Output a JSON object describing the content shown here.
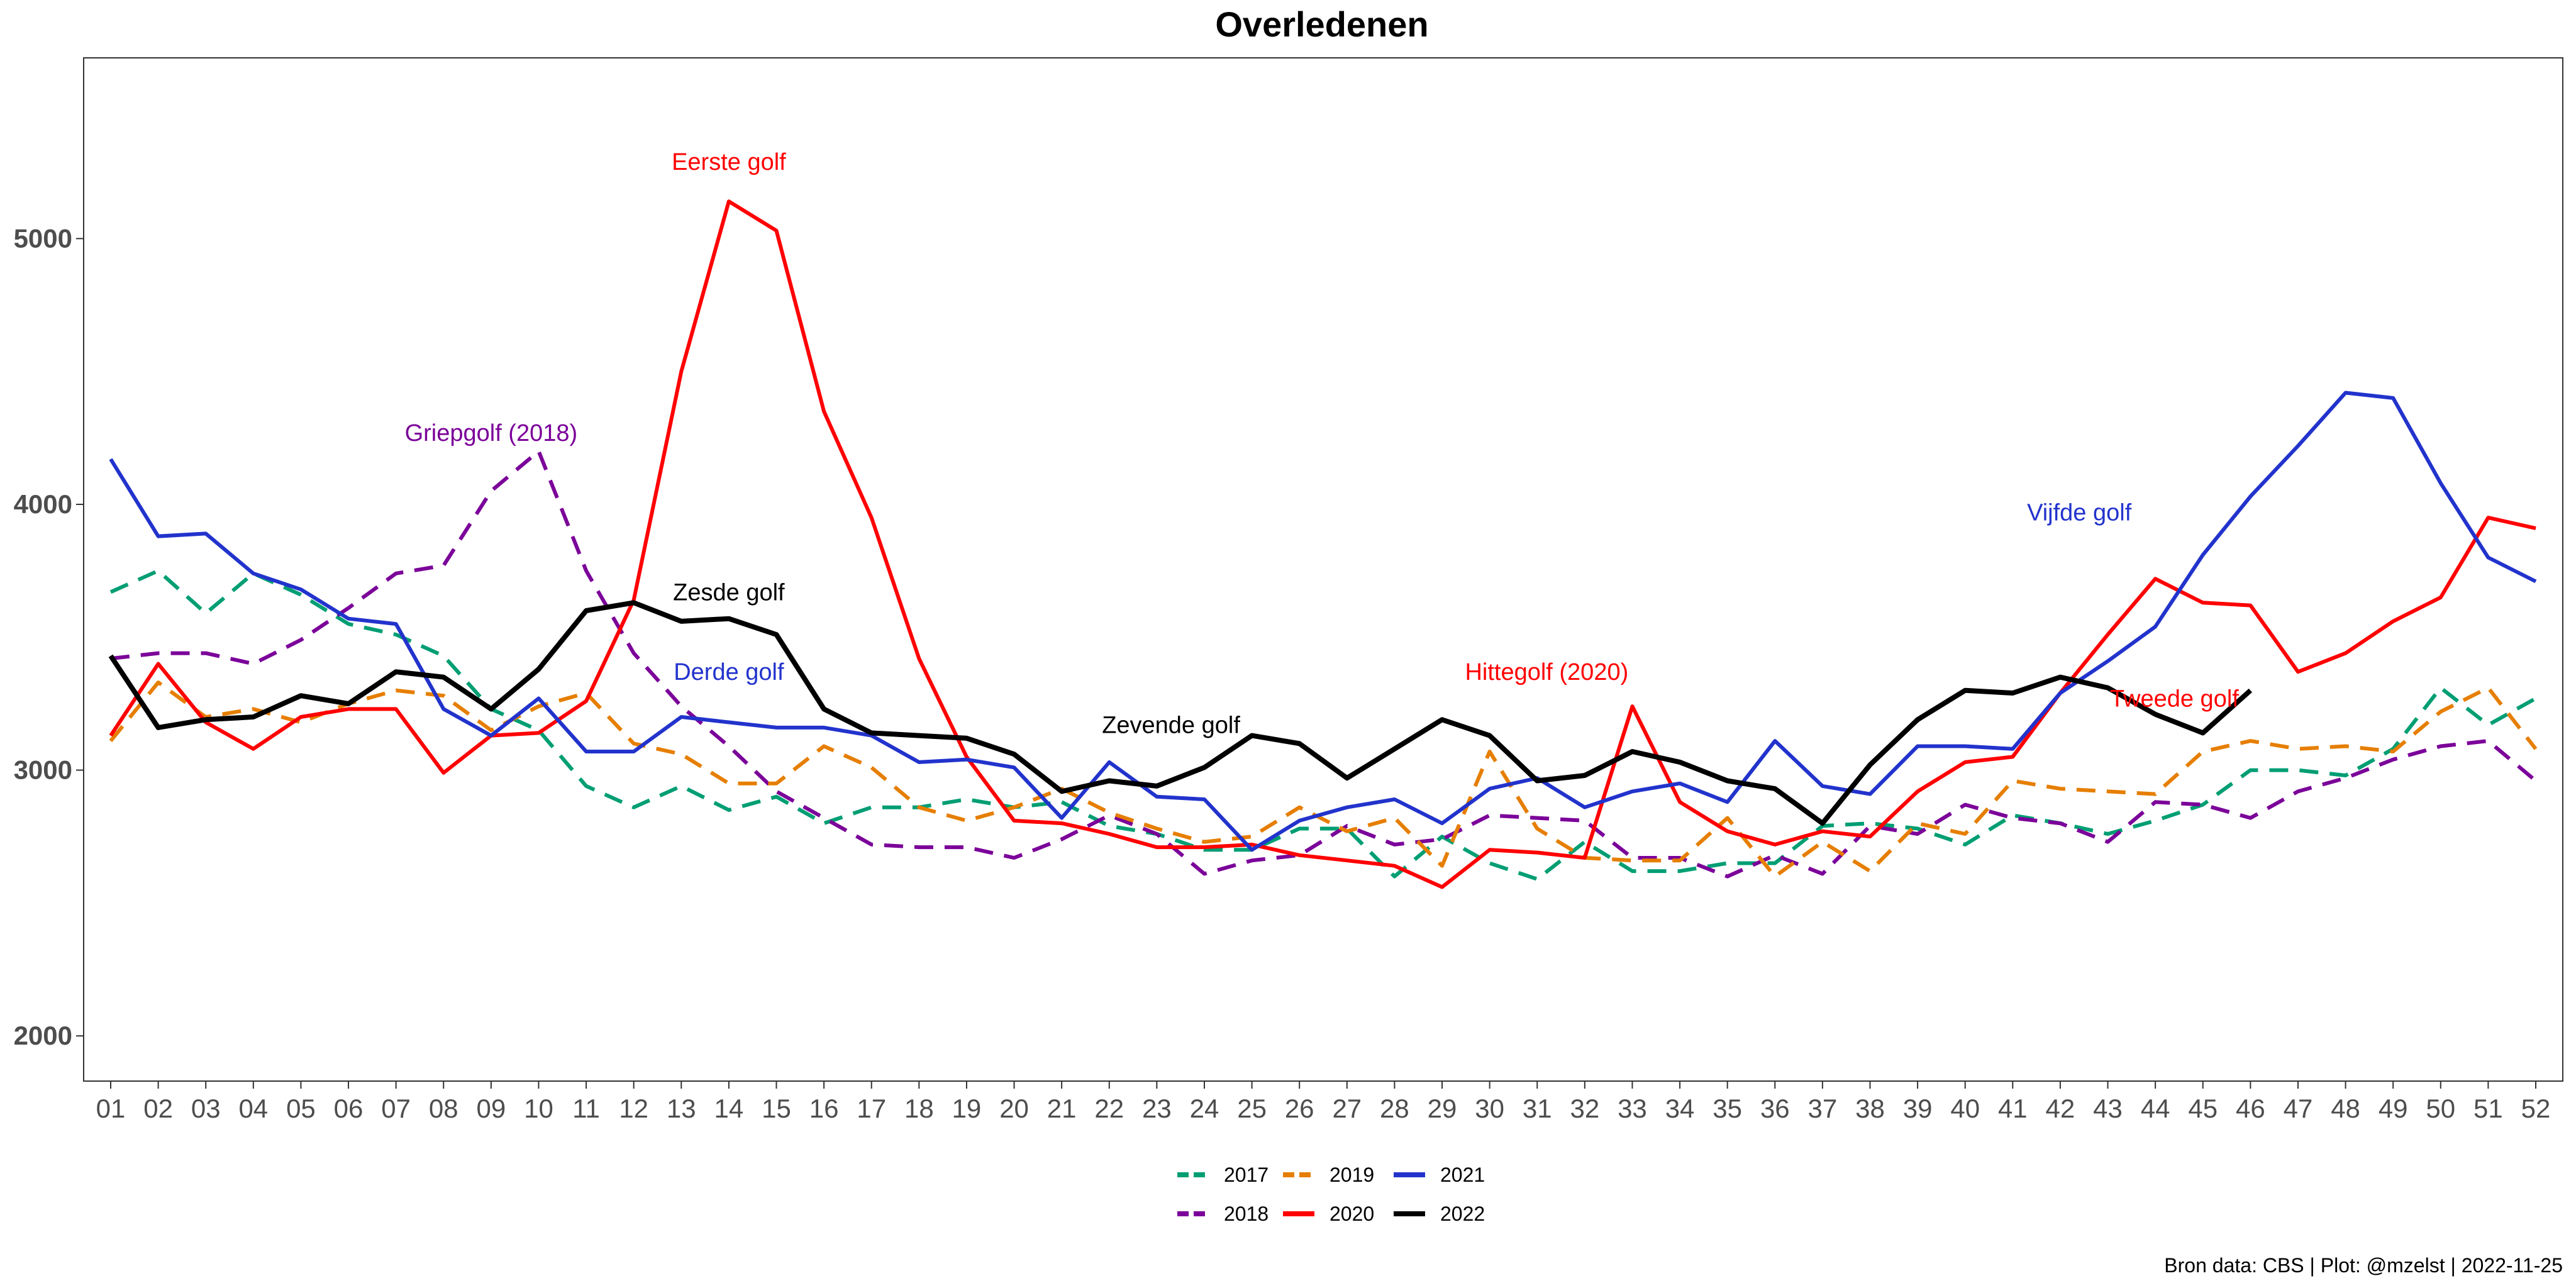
{
  "chart_data": {
    "type": "line",
    "title": "Overledenen",
    "xlabel": "",
    "ylabel": "",
    "categories": [
      "01",
      "02",
      "03",
      "04",
      "05",
      "06",
      "07",
      "08",
      "09",
      "10",
      "11",
      "12",
      "13",
      "14",
      "15",
      "16",
      "17",
      "18",
      "19",
      "20",
      "21",
      "22",
      "23",
      "24",
      "25",
      "26",
      "27",
      "28",
      "29",
      "30",
      "31",
      "32",
      "33",
      "34",
      "35",
      "36",
      "37",
      "38",
      "39",
      "40",
      "41",
      "42",
      "43",
      "44",
      "45",
      "46",
      "47",
      "48",
      "49",
      "50",
      "51",
      "52"
    ],
    "ylim": [
      1830,
      5680
    ],
    "yticks": [
      2000,
      3000,
      4000,
      5000
    ],
    "grid": false,
    "legend_position": "bottom",
    "series": [
      {
        "name": "2017",
        "color": "#009E73",
        "dash": "dashed",
        "values": [
          3670,
          3750,
          3590,
          3740,
          3660,
          3550,
          3510,
          3430,
          3230,
          3150,
          2940,
          2860,
          2940,
          2850,
          2900,
          2800,
          2860,
          2860,
          2890,
          2860,
          2880,
          2790,
          2760,
          2700,
          2700,
          2780,
          2780,
          2600,
          2750,
          2650,
          2590,
          2730,
          2620,
          2620,
          2650,
          2650,
          2790,
          2800,
          2780,
          2720,
          2830,
          2800,
          2760,
          2810,
          2870,
          3000,
          3000,
          2980,
          3080,
          3310,
          3170,
          3270
        ]
      },
      {
        "name": "2018",
        "color": "#7B0099",
        "dash": "dashed",
        "values": [
          3420,
          3440,
          3440,
          3400,
          3490,
          3610,
          3740,
          3770,
          4050,
          4200,
          3750,
          3440,
          3240,
          3090,
          2920,
          2820,
          2720,
          2710,
          2710,
          2670,
          2740,
          2830,
          2760,
          2610,
          2660,
          2680,
          2790,
          2720,
          2740,
          2830,
          2820,
          2810,
          2670,
          2670,
          2600,
          2680,
          2610,
          2790,
          2760,
          2870,
          2820,
          2800,
          2730,
          2880,
          2870,
          2820,
          2920,
          2970,
          3040,
          3090,
          3110,
          2960
        ]
      },
      {
        "name": "2019",
        "color": "#E67E00",
        "dash": "dashed",
        "values": [
          3110,
          3330,
          3200,
          3230,
          3180,
          3250,
          3300,
          3280,
          3150,
          3240,
          3290,
          3100,
          3060,
          2950,
          2950,
          3090,
          3010,
          2860,
          2810,
          2860,
          2930,
          2840,
          2780,
          2730,
          2750,
          2860,
          2770,
          2820,
          2640,
          3070,
          2780,
          2670,
          2660,
          2660,
          2820,
          2600,
          2730,
          2620,
          2800,
          2760,
          2960,
          2930,
          2920,
          2910,
          3070,
          3110,
          3080,
          3090,
          3070,
          3220,
          3310,
          3080
        ]
      },
      {
        "name": "2020",
        "color": "#FF0000",
        "dash": "solid",
        "values": [
          3130,
          3400,
          3180,
          3080,
          3200,
          3230,
          3230,
          2990,
          3130,
          3140,
          3260,
          3640,
          4500,
          5140,
          5030,
          4350,
          3950,
          3420,
          3050,
          2810,
          2800,
          2760,
          2710,
          2710,
          2720,
          2680,
          2660,
          2640,
          2560,
          2700,
          2690,
          2670,
          3240,
          2880,
          2770,
          2720,
          2770,
          2750,
          2920,
          3030,
          3050,
          3290,
          3510,
          3720,
          3630,
          3620,
          3370,
          3440,
          3560,
          3650,
          3950,
          3910
        ]
      },
      {
        "name": "2021",
        "color": "#2233CC",
        "dash": "solid",
        "values": [
          4170,
          3880,
          3890,
          3740,
          3680,
          3570,
          3550,
          3230,
          3130,
          3270,
          3070,
          3070,
          3200,
          3180,
          3160,
          3160,
          3130,
          3030,
          3040,
          3010,
          2820,
          3030,
          2900,
          2890,
          2700,
          2810,
          2860,
          2890,
          2800,
          2930,
          2970,
          2860,
          2920,
          2950,
          2880,
          3110,
          2940,
          2910,
          3090,
          3090,
          3080,
          3290,
          3410,
          3540,
          3810,
          4030,
          4220,
          4420,
          4400,
          4080,
          3800,
          3710
        ]
      },
      {
        "name": "2022",
        "color": "#000000",
        "dash": "solid",
        "values": [
          3430,
          3160,
          3190,
          3200,
          3280,
          3250,
          3370,
          3350,
          3230,
          3380,
          3600,
          3630,
          3560,
          3570,
          3510,
          3230,
          3140,
          3130,
          3120,
          3060,
          2920,
          2960,
          2940,
          3010,
          3130,
          3100,
          2970,
          3080,
          3190,
          3130,
          2960,
          2980,
          3070,
          3030,
          2960,
          2930,
          2800,
          3020,
          3190,
          3300,
          3290,
          3350,
          3310,
          3210,
          3140,
          3300,
          null,
          null,
          null,
          null,
          null,
          null
        ]
      }
    ],
    "annotations": [
      {
        "text": "Eerste golf",
        "color": "#FF0000",
        "x": 14,
        "y": 5290
      },
      {
        "text": "Griepgolf (2018)",
        "color": "#7B0099",
        "x": 9,
        "y": 4270
      },
      {
        "text": "Zesde golf",
        "color": "#000000",
        "x": 14,
        "y": 3670
      },
      {
        "text": "Derde golf",
        "color": "#2233CC",
        "x": 14,
        "y": 3370
      },
      {
        "text": "Zevende golf",
        "color": "#000000",
        "x": 23.3,
        "y": 3170
      },
      {
        "text": "Hittegolf (2020)",
        "color": "#FF0000",
        "x": 31.2,
        "y": 3370
      },
      {
        "text": "Vijfde golf",
        "color": "#2233CC",
        "x": 42.4,
        "y": 3970
      },
      {
        "text": "Tweede golf",
        "color": "#FF0000",
        "x": 44.4,
        "y": 3270
      }
    ],
    "caption": "Bron data: CBS  | Plot: @mzelst |  2022-11-25"
  }
}
